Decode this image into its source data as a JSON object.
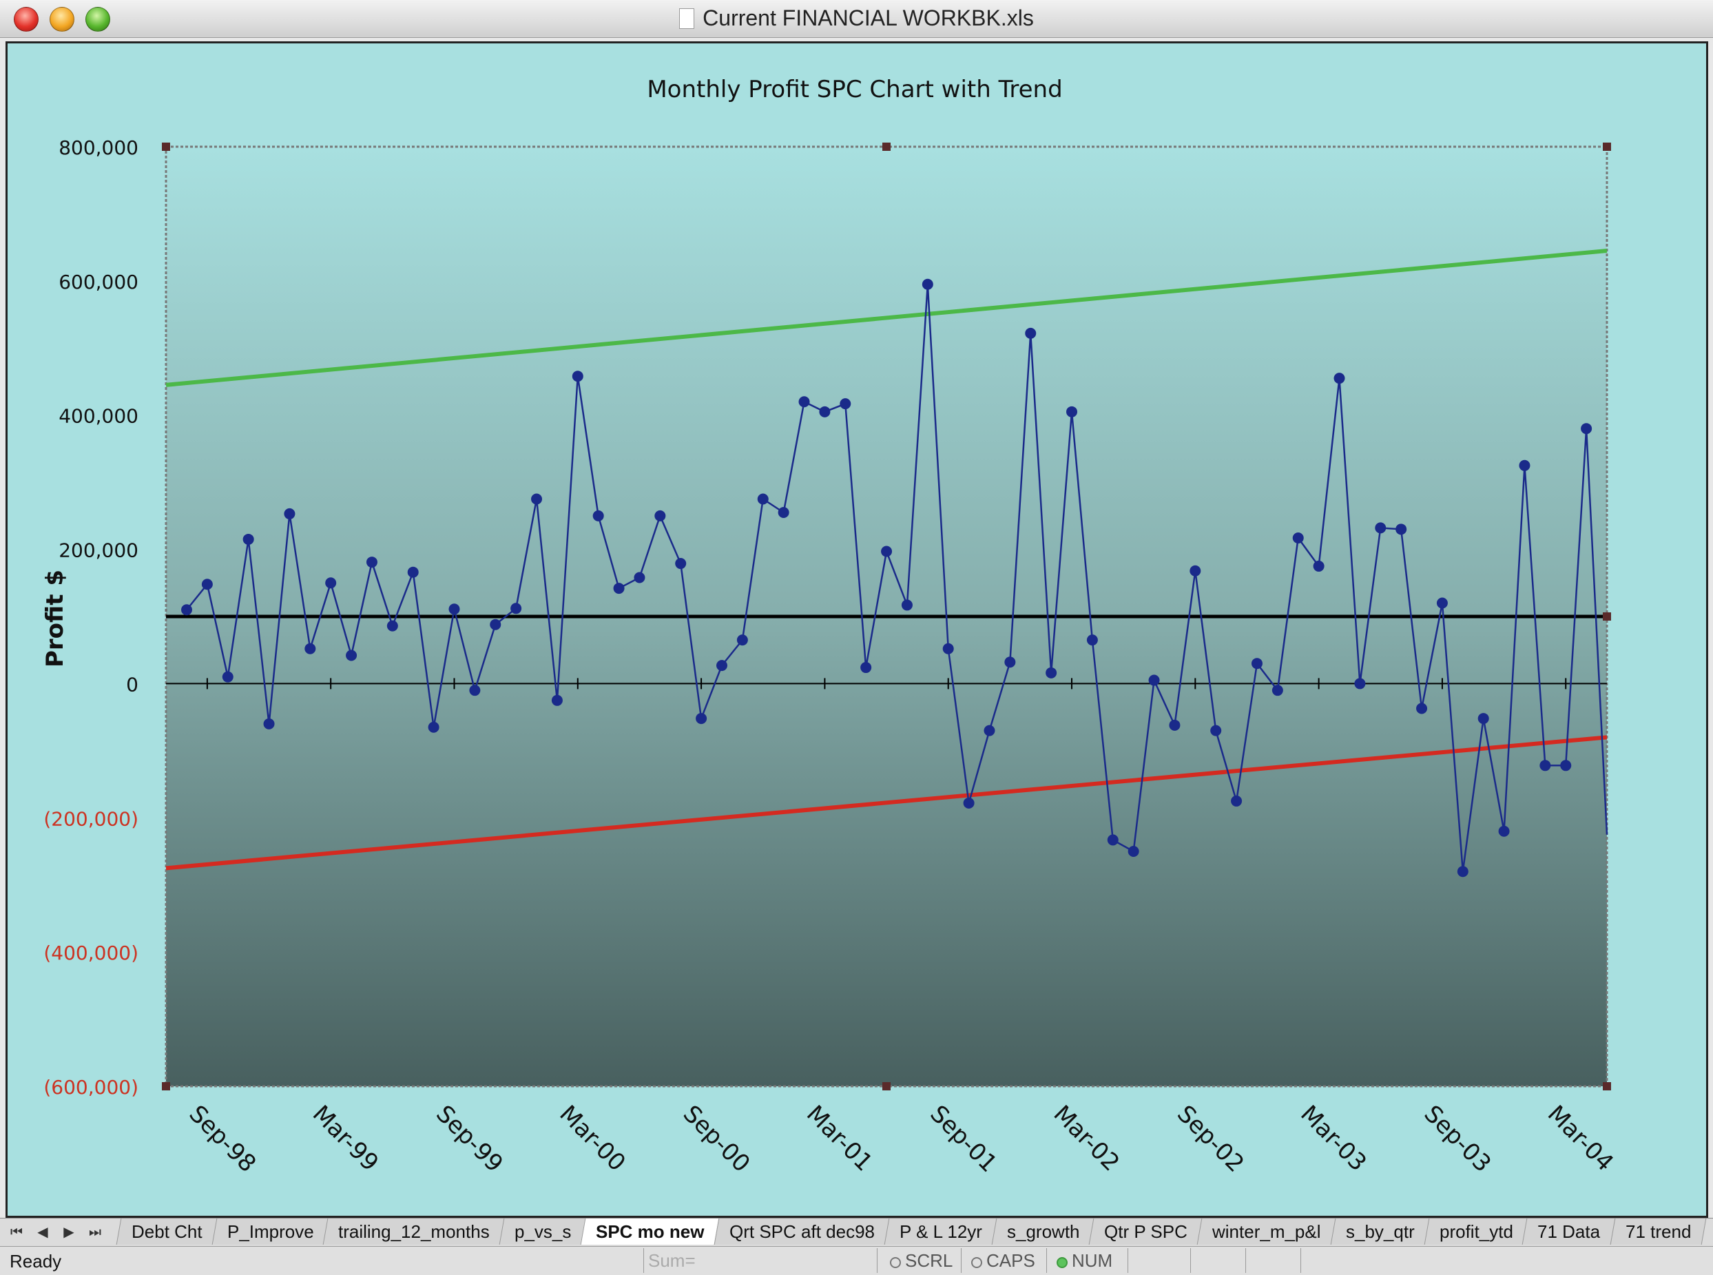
{
  "window": {
    "title": "Current FINANCIAL WORKBK.xls"
  },
  "chart_data": {
    "type": "line",
    "title": "Monthly Profit SPC Chart with Trend",
    "ylabel": "Profit $",
    "xlabel": "",
    "ylim": [
      -600000,
      800000
    ],
    "y_ticks": [
      "800,000",
      "600,000",
      "400,000",
      "200,000",
      "0",
      "(200,000)",
      "(400,000)",
      "(600,000)"
    ],
    "x_tick_labels": [
      "Sep-98",
      "Mar-99",
      "Sep-99",
      "Mar-00",
      "Sep-00",
      "Mar-01",
      "Sep-01",
      "Mar-02",
      "Sep-02",
      "Mar-03",
      "Sep-03",
      "Mar-04"
    ],
    "x_range": [
      "Aug-98",
      "Jul-04"
    ],
    "series": [
      {
        "values": [
          110000,
          148000,
          10000,
          215000,
          -60000,
          253000,
          52000,
          150000,
          42000,
          181000,
          86000,
          166000,
          -65000,
          111000,
          -10000,
          88000,
          112000,
          275000,
          -25000,
          458000,
          250000,
          142000,
          158000,
          250000,
          179000,
          -52000,
          27000,
          65000,
          275000,
          255000,
          420000,
          405000,
          417000,
          24000,
          197000,
          117000,
          595000,
          52000,
          -178000,
          -70000,
          32000,
          522000,
          16000,
          405000,
          65000,
          -233000,
          -250000,
          5000,
          -62000,
          168000,
          -70000,
          -175000,
          30000,
          -10000,
          217000,
          175000,
          455000,
          0,
          232000,
          230000,
          -37000,
          120000,
          -280000,
          -52000,
          -220000,
          325000,
          -122000,
          -122000,
          380000,
          -225000
        ],
        "color": "#1a2a8a"
      },
      {
        "start": 100000,
        "end": 100000,
        "color": "#000000"
      },
      {
        "start": 445000,
        "end": 645000,
        "color": "#4cb848"
      },
      {
        "start": -275000,
        "end": -80000,
        "color": "#d42a20"
      }
    ],
    "negative_label_color": "#cc3322",
    "grid": false
  },
  "sheet_tabs": [
    "Debt Cht",
    "P_Improve",
    "trailing_12_months",
    "p_vs_s",
    "SPC mo new",
    "Qrt SPC aft dec98",
    "P & L 12yr",
    "s_growth",
    "Qtr P SPC",
    "winter_m_p&l",
    "s_by_qtr",
    "profit_ytd",
    "71 Data",
    "71 trend"
  ],
  "active_tab": "SPC mo new",
  "status": {
    "ready": "Ready",
    "sum": "Sum=",
    "scrl": "SCRL",
    "caps": "CAPS",
    "num": "NUM"
  }
}
